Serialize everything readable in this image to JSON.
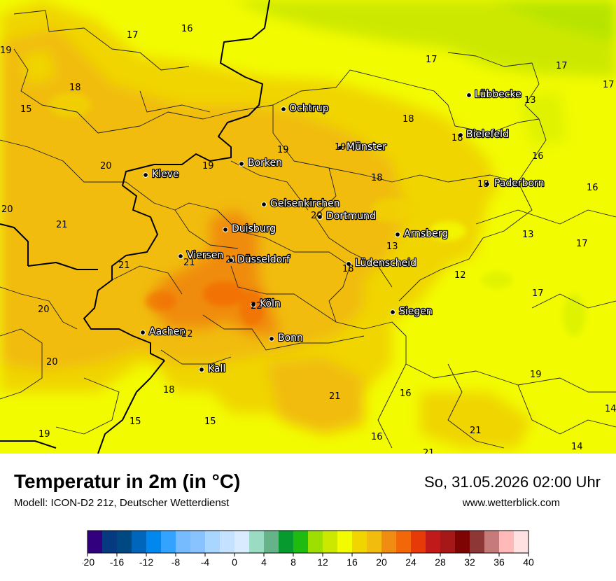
{
  "map": {
    "cities": [
      {
        "name": "Ochtrup"
      },
      {
        "name": "Lübbecke"
      },
      {
        "name": "Bielefeld"
      },
      {
        "name": "Münster"
      },
      {
        "name": "Borken"
      },
      {
        "name": "Kleve"
      },
      {
        "name": "Paderborn"
      },
      {
        "name": "Gelsenkirchen"
      },
      {
        "name": "Dortmund"
      },
      {
        "name": "Duisburg"
      },
      {
        "name": "Arnsberg"
      },
      {
        "name": "Viersen"
      },
      {
        "name": "Düsseldorf"
      },
      {
        "name": "Lüdenscheid"
      },
      {
        "name": "Köln"
      },
      {
        "name": "Siegen"
      },
      {
        "name": "Aachen"
      },
      {
        "name": "Bonn"
      },
      {
        "name": "Kall"
      }
    ],
    "temperatures": [
      {
        "value": "17"
      },
      {
        "value": "16"
      },
      {
        "value": "19"
      },
      {
        "value": "17"
      },
      {
        "value": "17"
      },
      {
        "value": "17"
      },
      {
        "value": "18"
      },
      {
        "value": "15"
      },
      {
        "value": "13"
      },
      {
        "value": "18"
      },
      {
        "value": "18"
      },
      {
        "value": "19"
      },
      {
        "value": "19"
      },
      {
        "value": "20"
      },
      {
        "value": "19"
      },
      {
        "value": "16"
      },
      {
        "value": "18"
      },
      {
        "value": "18"
      },
      {
        "value": "16"
      },
      {
        "value": "20"
      },
      {
        "value": "21"
      },
      {
        "value": "20"
      },
      {
        "value": "13"
      },
      {
        "value": "13"
      },
      {
        "value": "17"
      },
      {
        "value": "21"
      },
      {
        "value": "21"
      },
      {
        "value": "21"
      },
      {
        "value": "18"
      },
      {
        "value": "12"
      },
      {
        "value": "20"
      },
      {
        "value": "22"
      },
      {
        "value": "17"
      },
      {
        "value": "22"
      },
      {
        "value": "20"
      },
      {
        "value": "19"
      },
      {
        "value": "18"
      },
      {
        "value": "16"
      },
      {
        "value": "21"
      },
      {
        "value": "14"
      },
      {
        "value": "15"
      },
      {
        "value": "15"
      },
      {
        "value": "19"
      },
      {
        "value": "21"
      },
      {
        "value": "16"
      },
      {
        "value": "21"
      },
      {
        "value": "14"
      }
    ]
  },
  "footer": {
    "title": "Temperatur in 2m (in °C)",
    "model": "Modell: ICON-D2 21z, Deutscher Wetterdienst",
    "datetime": "So, 31.05.2026 02:00 Uhr",
    "website": "www.wetterblick.com"
  },
  "legend": {
    "min": -20,
    "max": 40,
    "step": 2,
    "tick_labels": [
      "-20",
      "-16",
      "-12",
      "-8",
      "-4",
      "0",
      "4",
      "8",
      "12",
      "16",
      "20",
      "24",
      "28",
      "32",
      "36",
      "40"
    ],
    "colors": [
      "#32007f",
      "#053a80",
      "#004882",
      "#0066bb",
      "#0088ee",
      "#33a3ff",
      "#77bbff",
      "#88c2ff",
      "#a9d6ff",
      "#c4e2ff",
      "#d9ecff",
      "#99dcc3",
      "#66b38a",
      "#079a2f",
      "#20bb11",
      "#9ddf00",
      "#cde800",
      "#f2fb00",
      "#f0d500",
      "#f1bc0d",
      "#f08c11",
      "#f26809",
      "#e63a09",
      "#c11a1a",
      "#a61717",
      "#7e0404",
      "#8e3737",
      "#c77a7a",
      "#ffb9b9",
      "#ffe1e1"
    ]
  }
}
